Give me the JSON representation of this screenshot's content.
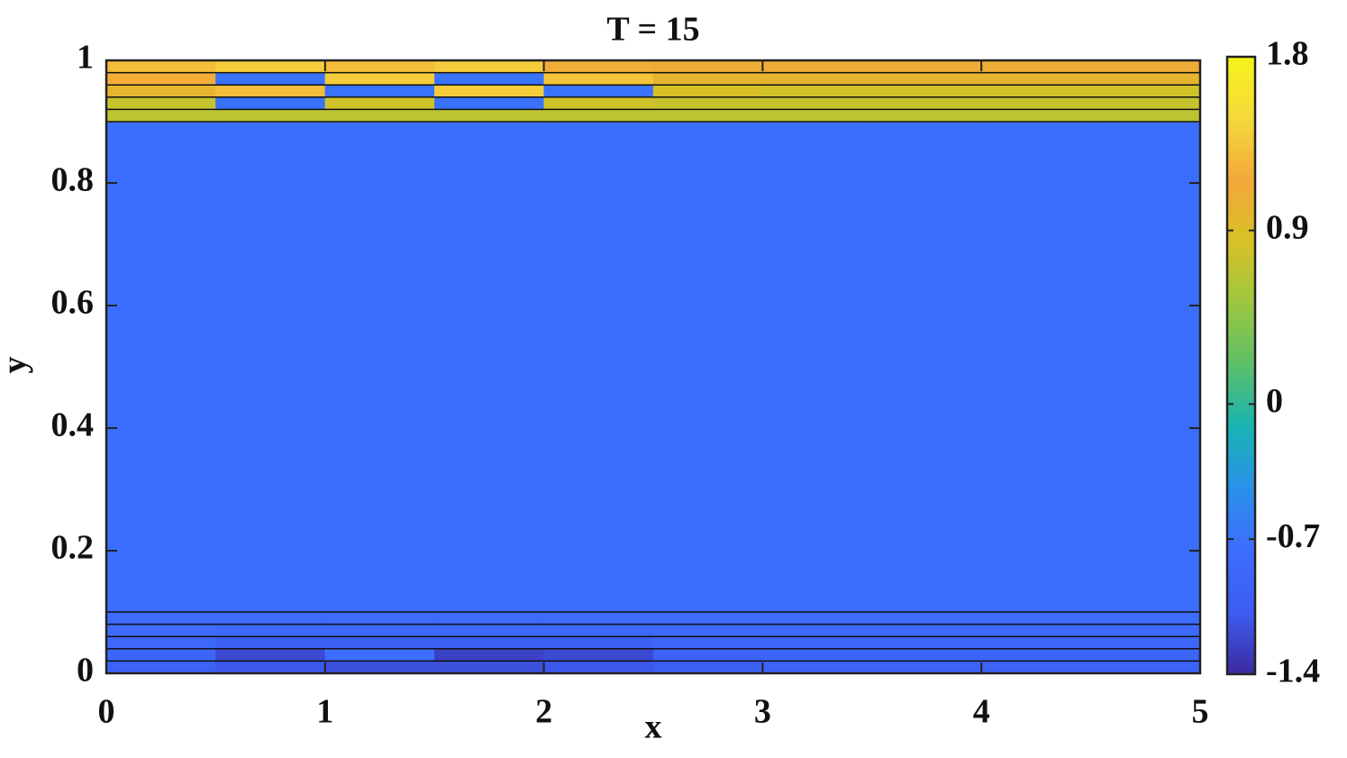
{
  "chart_data": {
    "type": "contour",
    "title": "T = 15",
    "xlabel": "x",
    "ylabel": "y",
    "xlim": [
      0,
      5
    ],
    "ylim": [
      0,
      1
    ],
    "xticks": [
      0,
      1,
      2,
      3,
      4,
      5
    ],
    "yticks": [
      0,
      0.2,
      0.4,
      0.6,
      0.8,
      1
    ],
    "clim": [
      -1.4,
      1.8
    ],
    "cticks": [
      -1.4,
      -0.7,
      0,
      0.9,
      1.8
    ],
    "colormap": [
      "#3b2a9e",
      "#3c5cf0",
      "#3d6dff",
      "#2a8fea",
      "#18b3b5",
      "#5bbf6a",
      "#9bc741",
      "#d7c126",
      "#f3a83a",
      "#f5d93a",
      "#f7f31c"
    ],
    "x_edges": [
      0,
      0.5,
      1,
      1.5,
      2,
      2.5,
      3,
      3.5,
      4,
      4.5,
      5
    ],
    "y_edges": [
      0,
      0.02,
      0.04,
      0.06,
      0.08,
      0.1,
      0.9,
      0.92,
      0.94,
      0.96,
      0.98,
      1
    ],
    "z": [
      [
        -0.95,
        -1.1,
        -1.15,
        -1.15,
        -1.1,
        -1.0,
        -0.95,
        -0.95,
        -0.95,
        -0.95
      ],
      [
        -0.9,
        -1.2,
        -0.75,
        -1.25,
        -1.2,
        -0.95,
        -0.9,
        -0.9,
        -0.9,
        -0.9
      ],
      [
        -0.85,
        -1.0,
        -1.05,
        -1.0,
        -1.0,
        -0.9,
        -0.88,
        -0.88,
        -0.88,
        -0.88
      ],
      [
        -0.8,
        -0.85,
        -0.85,
        -0.85,
        -0.85,
        -0.82,
        -0.82,
        -0.82,
        -0.82,
        -0.82
      ],
      [
        -0.78,
        -0.8,
        -0.8,
        -0.8,
        -0.8,
        -0.78,
        -0.78,
        -0.78,
        -0.78,
        -0.78
      ],
      [
        -0.75,
        -0.75,
        -0.75,
        -0.75,
        -0.75,
        -0.75,
        -0.75,
        -0.75,
        -0.75,
        -0.75
      ],
      [
        0.7,
        0.7,
        0.7,
        0.7,
        0.7,
        0.7,
        0.7,
        0.7,
        0.7,
        0.7
      ],
      [
        0.75,
        -0.7,
        0.8,
        -0.7,
        0.8,
        0.75,
        0.75,
        0.75,
        0.75,
        0.75
      ],
      [
        1.0,
        1.3,
        -0.7,
        1.4,
        -0.7,
        0.85,
        0.8,
        0.8,
        0.8,
        0.8
      ],
      [
        1.2,
        -0.7,
        1.4,
        -0.7,
        1.35,
        1.0,
        1.0,
        1.0,
        1.0,
        1.0
      ],
      [
        1.3,
        1.4,
        1.3,
        1.4,
        1.2,
        1.1,
        1.1,
        1.1,
        1.1,
        1.1
      ]
    ]
  }
}
